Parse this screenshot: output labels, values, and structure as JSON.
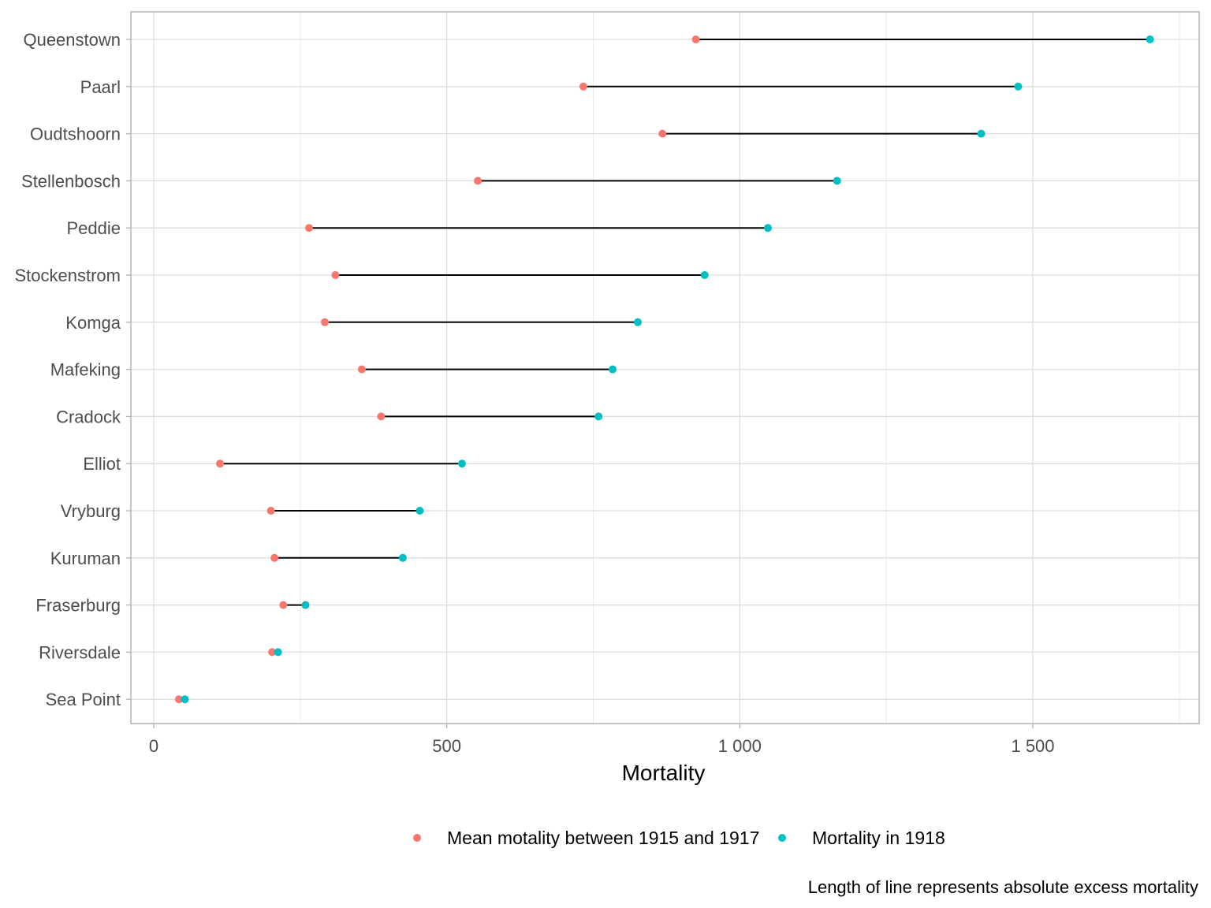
{
  "chart_data": {
    "type": "dumbbell",
    "xlabel": "Mortality",
    "ylabel": "",
    "xlim": [
      -40,
      1780
    ],
    "x_ticks": [
      {
        "value": 0,
        "label": "0"
      },
      {
        "value": 500,
        "label": "500"
      },
      {
        "value": 1000,
        "label": "1 000"
      },
      {
        "value": 1500,
        "label": "1 500"
      }
    ],
    "minor_ticks": [
      250,
      750,
      1250,
      1750
    ],
    "grid": true,
    "categories": [
      "Queenstown",
      "Paarl",
      "Oudtshoorn",
      "Stellenbosch",
      "Peddie",
      "Stockenstrom",
      "Komga",
      "Mafeking",
      "Cradock",
      "Elliot",
      "Vryburg",
      "Kuruman",
      "Fraserburg",
      "Riversdale",
      "Sea Point"
    ],
    "series": [
      {
        "name": "Mean motality between 1915 and 1917",
        "color": "#F8766D",
        "values": [
          925,
          733,
          868,
          553,
          265,
          310,
          292,
          355,
          388,
          113,
          200,
          206,
          221,
          202,
          43
        ]
      },
      {
        "name": "Mortality in 1918",
        "color": "#00BFC4",
        "values": [
          1700,
          1475,
          1412,
          1166,
          1048,
          940,
          826,
          783,
          759,
          526,
          454,
          425,
          259,
          212,
          53
        ]
      }
    ],
    "legend_position": "bottom",
    "caption": "Length of line represents absolute excess mortality"
  }
}
